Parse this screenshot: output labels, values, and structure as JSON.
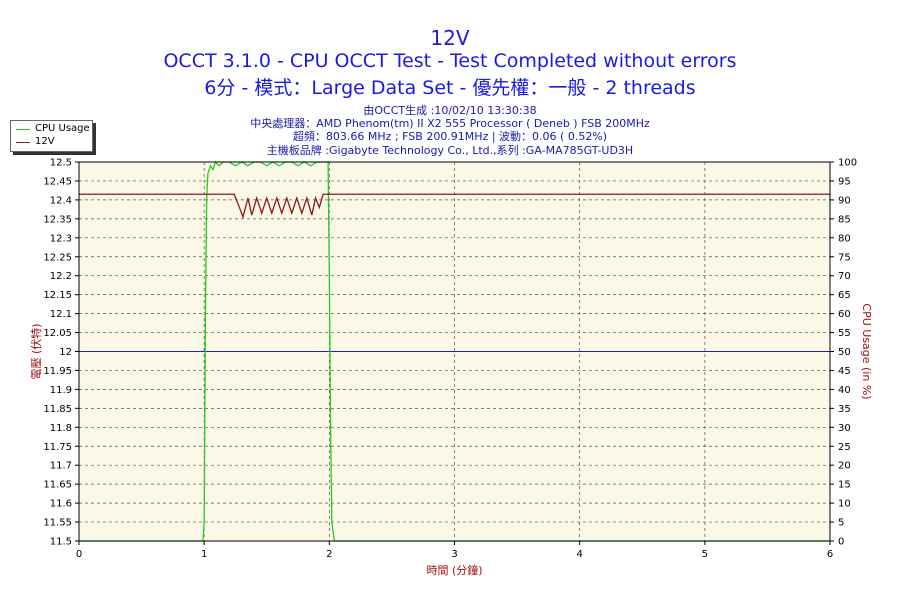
{
  "title_lines": [
    "12V",
    "OCCT 3.1.0 - CPU OCCT Test - Test Completed without errors",
    "6分 - 模式：Large Data Set - 優先權：一般 - 2 threads"
  ],
  "info_lines": [
    "由OCCT生成 :10/02/10 13:30:38",
    "中央處理器：AMD Phenom(tm) II X2 555 Processor ( Deneb ) FSB 200MHz",
    "超頻：803.66 MHz ; FSB 200.91MHz | 波動：0.06 ( 0.52%)",
    "主機板品牌 :Gigabyte Technology Co., Ltd.,系列 :GA-MA785GT-UD3H"
  ],
  "colors": {
    "cpu_usage": "#22cc22",
    "voltage": "#8b1a1a",
    "reference": "#1c1cc8",
    "plot_bg": "#fbf8e8",
    "axis_label": "#a01010"
  },
  "chart_data": {
    "type": "line",
    "xlabel": "時間 (分鐘)",
    "ylabel_left": "電壓 (伏特)",
    "ylabel_right": "CPU Usage (in %)",
    "xlim": [
      0,
      6
    ],
    "ylim_left": [
      11.5,
      12.5
    ],
    "ylim_right": [
      0,
      100
    ],
    "x_ticks": [
      "0",
      "1",
      "2",
      "3",
      "4",
      "5",
      "6"
    ],
    "y_ticks_left": [
      "11.5",
      "11.55",
      "11.6",
      "11.65",
      "11.7",
      "11.75",
      "11.8",
      "11.85",
      "11.9",
      "11.95",
      "12",
      "12.05",
      "12.1",
      "12.15",
      "12.2",
      "12.25",
      "12.3",
      "12.35",
      "12.4",
      "12.45",
      "12.5"
    ],
    "y_ticks_right": [
      "0",
      "5",
      "10",
      "15",
      "20",
      "25",
      "30",
      "35",
      "40",
      "45",
      "50",
      "55",
      "60",
      "65",
      "70",
      "75",
      "80",
      "85",
      "90",
      "95",
      "100"
    ],
    "grid": true,
    "legend": "top-left",
    "reference_line": 12.0,
    "series": [
      {
        "name": "CPU Usage",
        "axis": "right",
        "x": [
          0,
          0.99,
          1.0,
          1.01,
          1.02,
          1.03,
          1.05,
          1.07,
          1.09,
          1.12,
          1.15,
          1.2,
          1.25,
          1.3,
          1.35,
          1.4,
          1.45,
          1.5,
          1.55,
          1.6,
          1.65,
          1.7,
          1.75,
          1.8,
          1.85,
          1.9,
          1.95,
          1.99,
          2.0,
          2.01,
          2.02,
          2.04,
          6
        ],
        "y": [
          0,
          0,
          5,
          60,
          90,
          97,
          99,
          98,
          100,
          99,
          100,
          100,
          99,
          100,
          99,
          100,
          100,
          99,
          100,
          99,
          100,
          100,
          99,
          100,
          99,
          100,
          100,
          100,
          70,
          30,
          5,
          0,
          0
        ]
      },
      {
        "name": "12V",
        "axis": "left",
        "x": [
          0,
          1.24,
          1.27,
          1.31,
          1.35,
          1.38,
          1.42,
          1.46,
          1.5,
          1.54,
          1.58,
          1.62,
          1.66,
          1.7,
          1.74,
          1.78,
          1.82,
          1.86,
          1.89,
          1.92,
          1.95,
          6
        ],
        "y": [
          12.415,
          12.415,
          12.39,
          12.355,
          12.405,
          12.36,
          12.405,
          12.365,
          12.405,
          12.365,
          12.405,
          12.365,
          12.405,
          12.365,
          12.405,
          12.365,
          12.405,
          12.36,
          12.405,
          12.38,
          12.415,
          12.415
        ]
      }
    ]
  }
}
